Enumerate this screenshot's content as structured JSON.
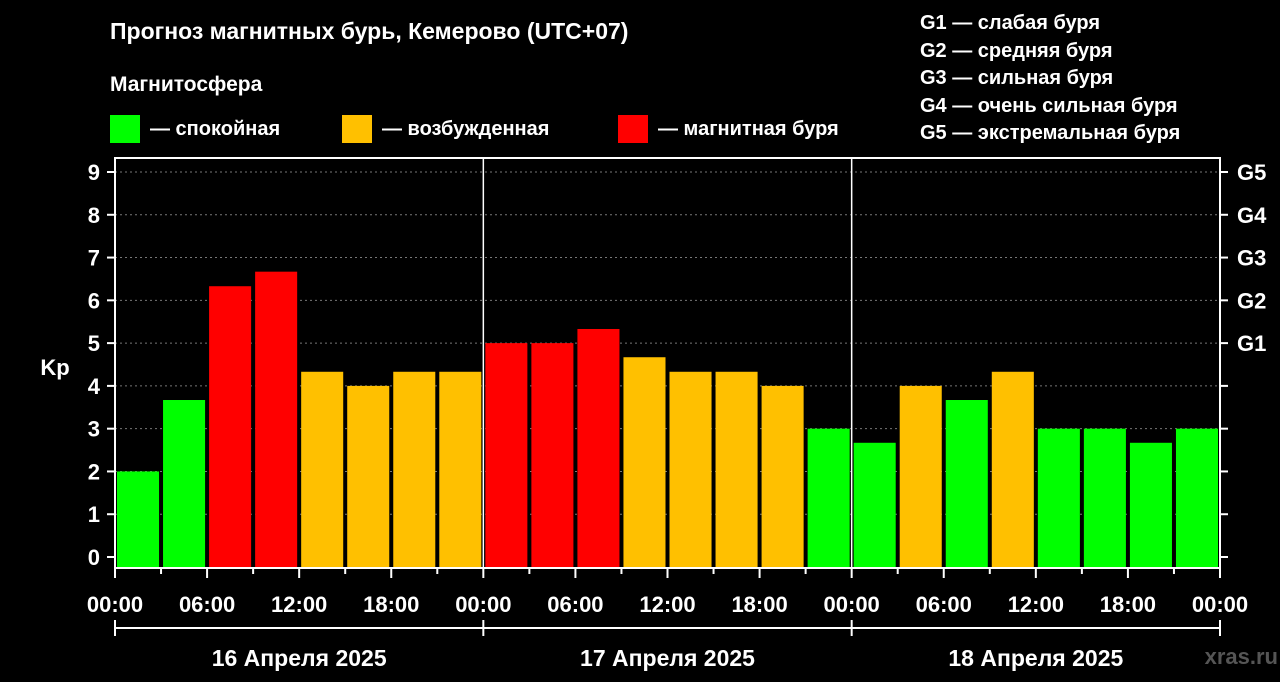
{
  "title": "Прогноз магнитных бурь, Кемерово (UTC+07)",
  "legend": {
    "heading": "Магнитосфера",
    "items": [
      {
        "label": "— спокойная",
        "color": "#00ff00"
      },
      {
        "label": "— возбужденная",
        "color": "#ffc000"
      },
      {
        "label": "— магнитная буря",
        "color": "#ff0000"
      }
    ]
  },
  "g_legend": [
    "G1 — слабая буря",
    "G2 — средняя буря",
    "G3 — сильная буря",
    "G4 — очень сильная буря",
    "G5 — экстремальная буря"
  ],
  "watermark": "xras.ru",
  "chart_data": {
    "type": "bar",
    "ylabel": "Kp",
    "ylim": [
      0,
      9
    ],
    "yticks": [
      "0",
      "1",
      "2",
      "3",
      "4",
      "5",
      "6",
      "7",
      "8",
      "9"
    ],
    "right_ticks": [
      {
        "value": 5,
        "label": "G1"
      },
      {
        "value": 6,
        "label": "G2"
      },
      {
        "value": 7,
        "label": "G3"
      },
      {
        "value": 8,
        "label": "G4"
      },
      {
        "value": 9,
        "label": "G5"
      }
    ],
    "xtick_labels": [
      "00:00",
      "06:00",
      "12:00",
      "18:00",
      "00:00",
      "06:00",
      "12:00",
      "18:00",
      "00:00",
      "06:00",
      "12:00",
      "18:00",
      "00:00"
    ],
    "days": [
      "16 Апреля 2025",
      "17 Апреля 2025",
      "18 Апреля 2025"
    ],
    "grid": true,
    "categories": [
      "16 Апреля 2025 00:00",
      "16 Апреля 2025 03:00",
      "16 Апреля 2025 06:00",
      "16 Апреля 2025 09:00",
      "16 Апреля 2025 12:00",
      "16 Апреля 2025 15:00",
      "16 Апреля 2025 18:00",
      "16 Апреля 2025 21:00",
      "17 Апреля 2025 00:00",
      "17 Апреля 2025 03:00",
      "17 Апреля 2025 06:00",
      "17 Апреля 2025 09:00",
      "17 Апреля 2025 12:00",
      "17 Апреля 2025 15:00",
      "17 Апреля 2025 18:00",
      "17 Апреля 2025 21:00",
      "18 Апреля 2025 00:00",
      "18 Апреля 2025 03:00",
      "18 Апреля 2025 06:00",
      "18 Апреля 2025 09:00",
      "18 Апреля 2025 12:00",
      "18 Апреля 2025 15:00",
      "18 Апреля 2025 18:00",
      "18 Апреля 2025 21:00"
    ],
    "values": [
      2.0,
      3.67,
      6.33,
      6.67,
      4.33,
      4.0,
      4.33,
      4.33,
      5.0,
      5.0,
      5.33,
      4.67,
      4.33,
      4.33,
      4.0,
      3.0,
      2.67,
      4.0,
      3.67,
      4.33,
      3.0,
      3.0,
      2.67,
      3.0
    ],
    "colors": [
      "#00ff00",
      "#00ff00",
      "#ff0000",
      "#ff0000",
      "#ffc000",
      "#ffc000",
      "#ffc000",
      "#ffc000",
      "#ff0000",
      "#ff0000",
      "#ff0000",
      "#ffc000",
      "#ffc000",
      "#ffc000",
      "#ffc000",
      "#00ff00",
      "#00ff00",
      "#ffc000",
      "#00ff00",
      "#ffc000",
      "#00ff00",
      "#00ff00",
      "#00ff00",
      "#00ff00"
    ]
  }
}
